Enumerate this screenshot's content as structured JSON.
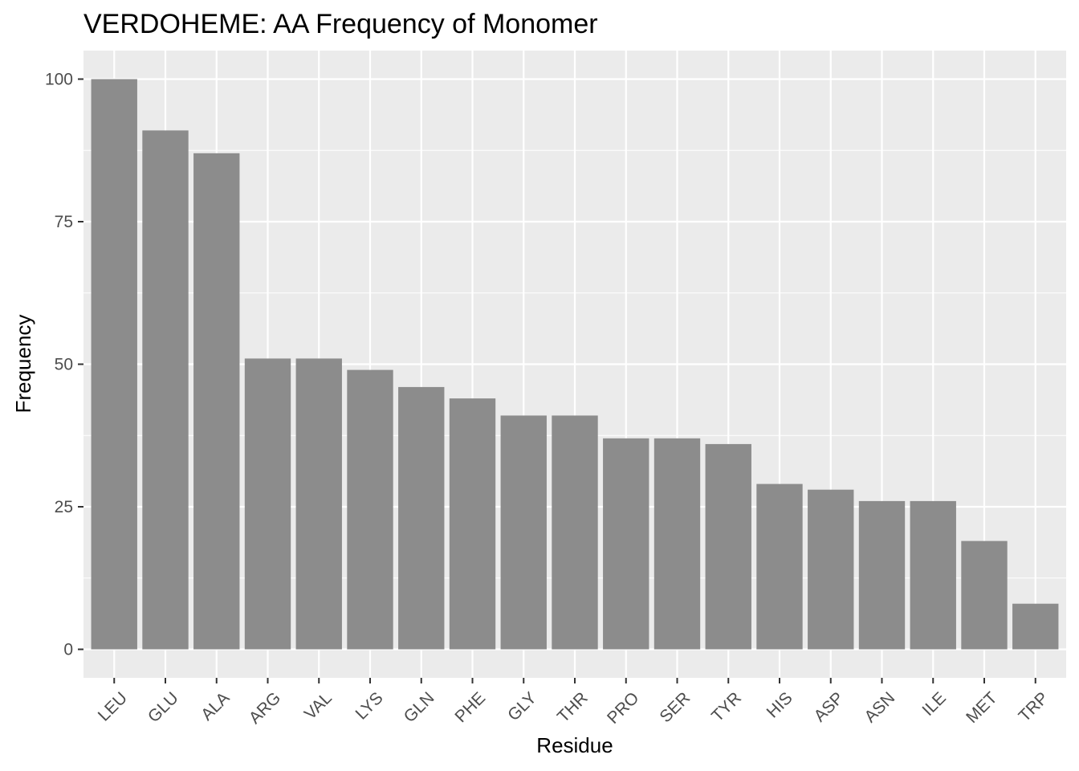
{
  "chart_data": {
    "type": "bar",
    "title": "VERDOHEME: AA Frequency of Monomer",
    "xlabel": "Residue",
    "ylabel": "Frequency",
    "categories": [
      "LEU",
      "GLU",
      "ALA",
      "ARG",
      "VAL",
      "LYS",
      "GLN",
      "PHE",
      "GLY",
      "THR",
      "PRO",
      "SER",
      "TYR",
      "HIS",
      "ASP",
      "ASN",
      "ILE",
      "MET",
      "TRP"
    ],
    "values": [
      100,
      91,
      87,
      51,
      51,
      49,
      46,
      44,
      41,
      41,
      37,
      37,
      36,
      29,
      28,
      26,
      26,
      19,
      8
    ],
    "yticks": [
      0,
      25,
      50,
      75,
      100
    ],
    "ylim": [
      -5,
      105
    ],
    "grid": true,
    "legend": "none",
    "colors": {
      "panel_background": "#ebebeb",
      "grid": "#ffffff",
      "bar_fill": "#8c8c8c",
      "tick_text": "#4d4d4d",
      "text": "#000000"
    }
  }
}
